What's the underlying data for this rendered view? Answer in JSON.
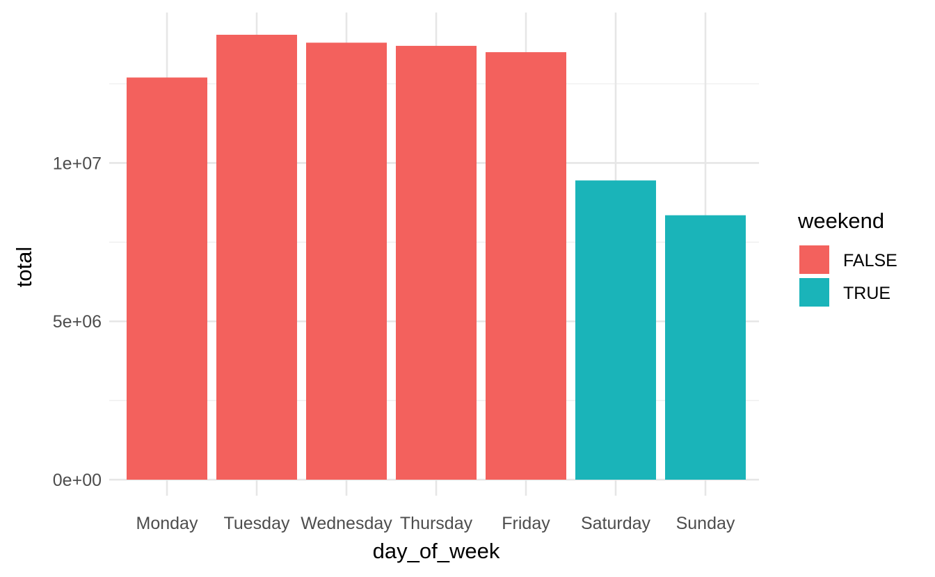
{
  "chart_data": {
    "type": "bar",
    "categories": [
      "Monday",
      "Tuesday",
      "Wednesday",
      "Thursday",
      "Friday",
      "Saturday",
      "Sunday"
    ],
    "values": [
      12700000,
      14050000,
      13800000,
      13700000,
      13500000,
      9450000,
      8350000
    ],
    "fill_group": [
      "FALSE",
      "FALSE",
      "FALSE",
      "FALSE",
      "FALSE",
      "TRUE",
      "TRUE"
    ],
    "xlabel": "day_of_week",
    "ylabel": "total",
    "ylim": [
      0,
      14050000
    ],
    "y_ticks": [
      {
        "value": 0,
        "label": "0e+00"
      },
      {
        "value": 5000000,
        "label": "5e+06"
      },
      {
        "value": 10000000,
        "label": "1e+07"
      }
    ],
    "y_minor_ticks": [
      2500000,
      7500000,
      12500000
    ],
    "grid": true,
    "legend": {
      "title": "weekend",
      "position": "right",
      "entries": [
        {
          "label": "FALSE",
          "color": "#F3615D"
        },
        {
          "label": "TRUE",
          "color": "#1AB4B9"
        }
      ]
    }
  }
}
